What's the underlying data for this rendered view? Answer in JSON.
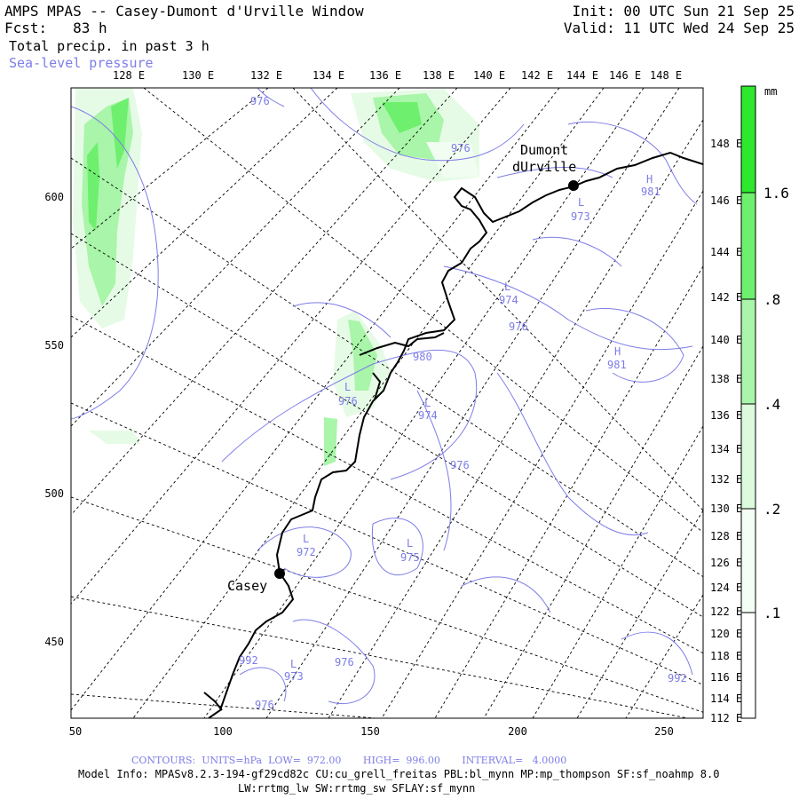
{
  "header": {
    "title": "AMPS MPAS -- Casey-Dumont d'Urville Window",
    "fcst": "Fcst:   83 h",
    "init": "Init: 00 UTC Sun 21 Sep 25",
    "valid": "Valid: 11 UTC Wed 24 Sep 25",
    "field1": "Total precip. in past 3 h",
    "field2": "Sea-level pressure"
  },
  "axes": {
    "top_lon_labels": [
      "128 E",
      "130 E",
      "132 E",
      "134 E",
      "136 E",
      "138 E",
      "140 E",
      "142 E",
      "144 E",
      "146 E",
      "148 E"
    ],
    "right_lon_labels": [
      "148 E",
      "146 E",
      "144 E",
      "142 E",
      "140 E",
      "138 E",
      "136 E",
      "134 E",
      "132 E",
      "130 E",
      "128 E",
      "126 E",
      "124 E",
      "122 E",
      "120 E",
      "118 E",
      "116 E",
      "114 E",
      "112 E"
    ],
    "x_ticks": [
      "50",
      "100",
      "150",
      "200",
      "250"
    ],
    "y_ticks": [
      "600",
      "550",
      "500",
      "450"
    ]
  },
  "stations": [
    {
      "name": "Dumont",
      "name2": "dUrville"
    },
    {
      "name": "Casey"
    }
  ],
  "pressure_labels": [
    {
      "text": "976"
    },
    {
      "text": "976"
    },
    {
      "text": "L"
    },
    {
      "text": "973"
    },
    {
      "text": "H"
    },
    {
      "text": "981"
    },
    {
      "text": "L"
    },
    {
      "text": "974"
    },
    {
      "text": "976"
    },
    {
      "text": "H"
    },
    {
      "text": "981"
    },
    {
      "text": "980"
    },
    {
      "text": "L"
    },
    {
      "text": "976"
    },
    {
      "text": "L"
    },
    {
      "text": "974"
    },
    {
      "text": "976"
    },
    {
      "text": "L"
    },
    {
      "text": "972"
    },
    {
      "text": "L"
    },
    {
      "text": "975"
    },
    {
      "text": "992"
    },
    {
      "text": "L"
    },
    {
      "text": "973"
    },
    {
      "text": "976"
    },
    {
      "text": "976"
    },
    {
      "text": "992"
    }
  ],
  "colorbar": {
    "unit": "mm",
    "labels": [
      "1.6",
      ".8",
      ".4",
      ".2",
      ".1"
    ],
    "colors": [
      "#2ee82e",
      "#6ef06e",
      "#a9f5a9",
      "#dcfadc",
      "#f4fef4"
    ]
  },
  "footer": {
    "contours": "CONTOURS:  UNITS=hPa  LOW=  972.00       HIGH=  996.00       INTERVAL=   4.0000",
    "model_info": "Model Info: MPASv8.2.3-194-gf29cd82c CU:cu_grell_freitas PBL:bl_mynn MP:mp_thompson SF:sf_noahmp 8.0",
    "model_info2": "LW:rrtmg_lw SW:rrtmg_sw SFLAY:sf_mynn"
  },
  "colors": {
    "contour": "#7d7de8",
    "coast": "#000000"
  }
}
